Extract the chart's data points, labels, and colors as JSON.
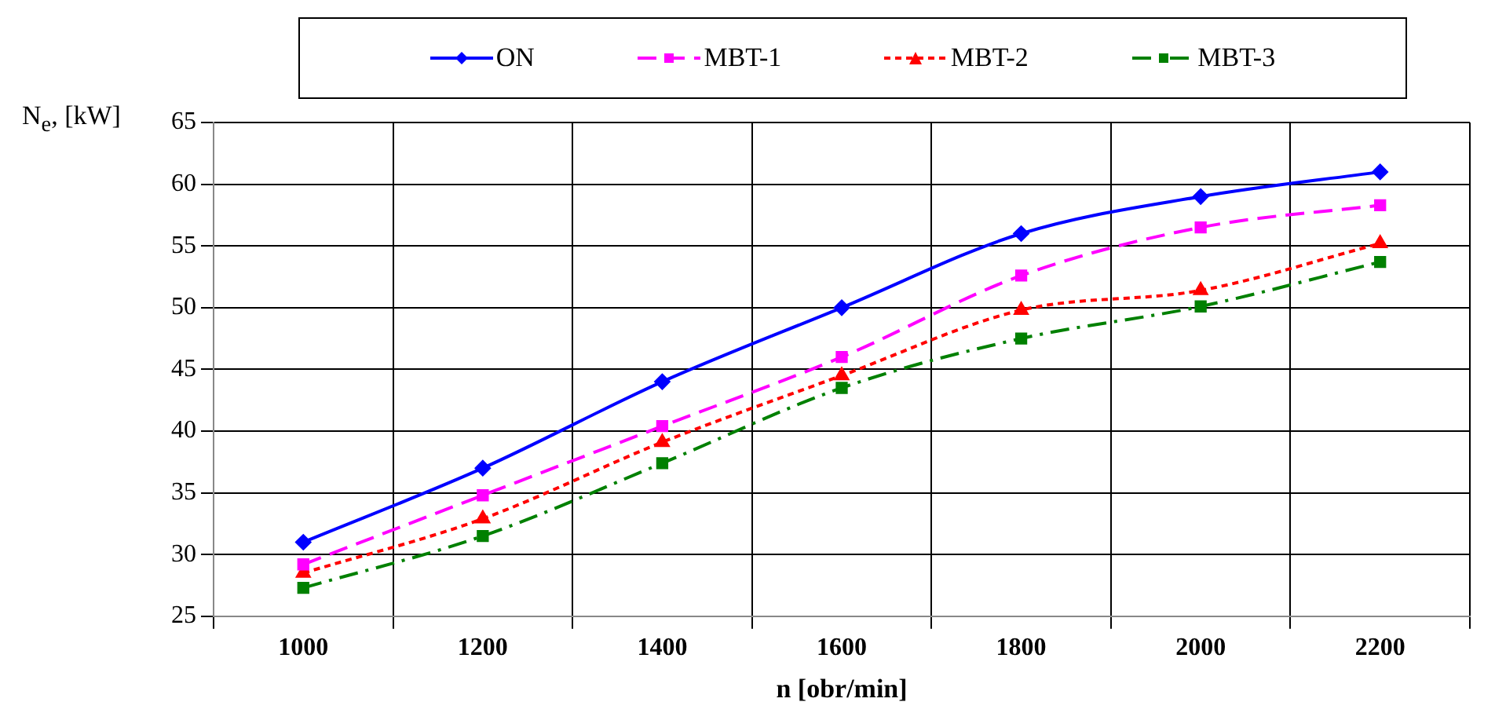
{
  "chart_data": {
    "type": "line",
    "xlabel": "n [obr/min]",
    "ylabel": "N$_{e}$, [kW]",
    "categories": [
      "1000",
      "1200",
      "1400",
      "1600",
      "1800",
      "2000",
      "2200"
    ],
    "series": [
      {
        "name": "ON",
        "color": "#0000ff",
        "marker": "diamond",
        "line_style": "solid",
        "values": [
          31,
          37,
          44,
          50,
          56,
          59,
          61
        ]
      },
      {
        "name": "MBT-1",
        "color": "#ff00ff",
        "marker": "square",
        "line_style": "dashed",
        "values": [
          29.2,
          34.8,
          40.4,
          46,
          52.6,
          56.5,
          58.3
        ]
      },
      {
        "name": "MBT-2",
        "color": "#ff0000",
        "marker": "triangle",
        "line_style": "dotted",
        "values": [
          28.5,
          32.9,
          39.1,
          44.5,
          49.8,
          51.4,
          55.2
        ]
      },
      {
        "name": "MBT-3",
        "color": "#008000",
        "marker": "square",
        "line_style": "dashdot",
        "values": [
          27.3,
          31.5,
          37.4,
          43.5,
          47.5,
          50.1,
          53.7
        ]
      }
    ],
    "ylim": [
      25,
      65
    ],
    "yticks": [
      25,
      30,
      35,
      40,
      45,
      50,
      55,
      60,
      65
    ],
    "grid": true,
    "legend": "top"
  }
}
